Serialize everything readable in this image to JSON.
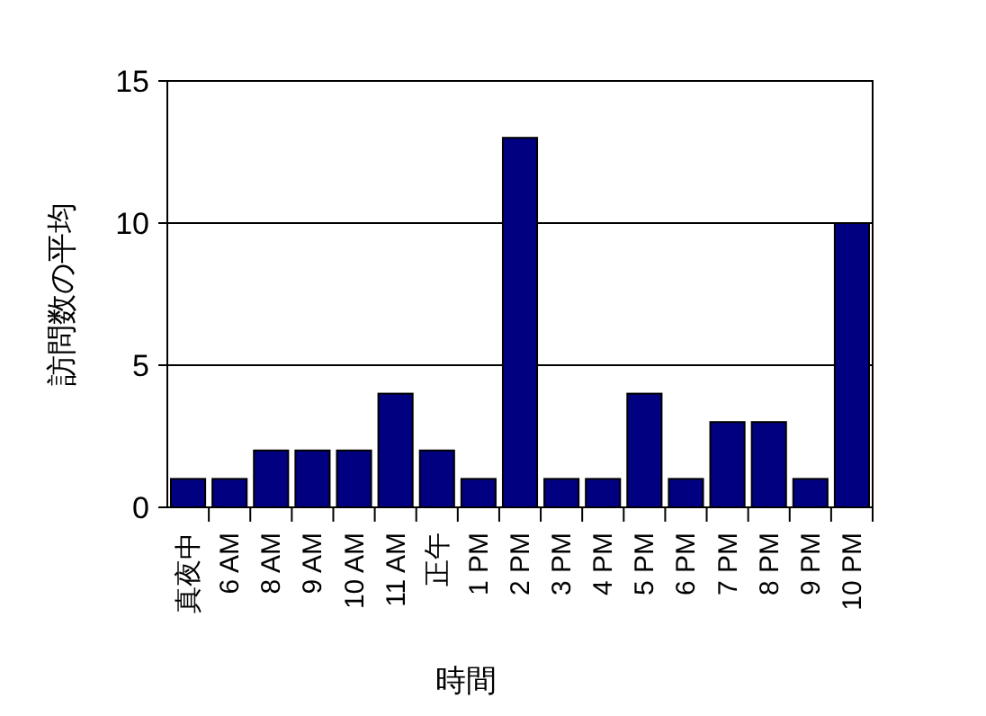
{
  "chart_data": {
    "type": "bar",
    "xlabel": "時間",
    "ylabel": "訪問数の平均",
    "categories": [
      "真夜中",
      "6 AM",
      "8 AM",
      "9 AM",
      "10 AM",
      "11 AM",
      "正午",
      "1 PM",
      "2 PM",
      "3 PM",
      "4 PM",
      "5 PM",
      "6 PM",
      "7 PM",
      "8 PM",
      "9 PM",
      "10 PM"
    ],
    "values": [
      1,
      1,
      2,
      2,
      2,
      4,
      2,
      1,
      13,
      1,
      1,
      4,
      1,
      3,
      3,
      1,
      10
    ],
    "color": "#000080",
    "ylim": [
      0,
      15
    ],
    "yticks": [
      0,
      5,
      10,
      15
    ],
    "grid": "y"
  }
}
